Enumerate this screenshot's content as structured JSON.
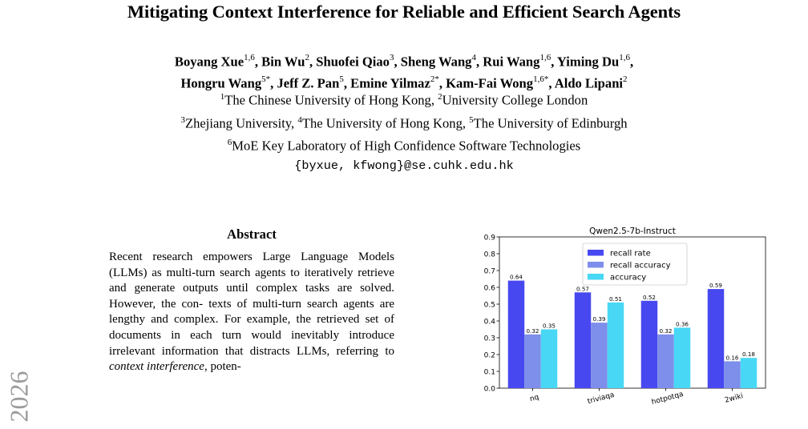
{
  "paper": {
    "title": "Mitigating Context Interference for Reliable and Efficient Search Agents",
    "authors_line1": [
      {
        "name": "Boyang Xue",
        "sup": "1,6"
      },
      {
        "name": "Bin Wu",
        "sup": "2"
      },
      {
        "name": "Shuofei Qiao",
        "sup": "3"
      },
      {
        "name": "Sheng Wang",
        "sup": "4"
      },
      {
        "name": "Rui Wang",
        "sup": "1,6"
      },
      {
        "name": "Yiming Du",
        "sup": "1,6"
      }
    ],
    "authors_line2": [
      {
        "name": "Hongru Wang",
        "sup": "5*"
      },
      {
        "name": "Jeff Z. Pan",
        "sup": "5"
      },
      {
        "name": "Emine Yilmaz",
        "sup": "2*"
      },
      {
        "name": "Kam-Fai Wong",
        "sup": "1,6*"
      },
      {
        "name": "Aldo Lipani",
        "sup": "2"
      }
    ],
    "affiliations": [
      [
        {
          "sup": "1",
          "text": "The Chinese University of Hong Kong, "
        },
        {
          "sup": "2",
          "text": "University College London"
        }
      ],
      [
        {
          "sup": "3",
          "text": "Zhejiang University, "
        },
        {
          "sup": "4",
          "text": "The University of Hong Kong, "
        },
        {
          "sup": "5",
          "text": "The University of Edinburgh"
        }
      ],
      [
        {
          "sup": "6",
          "text": "MoE Key Laboratory of High Confidence Software Technologies"
        }
      ]
    ],
    "email": "{byxue, kfwong}@se.cuhk.edu.hk",
    "watermark": "2026",
    "abstract_heading": "Abstract",
    "abstract_parts": {
      "p1": "Recent research empowers Large Language Models (LLMs) as multi-turn search agents to iteratively retrieve and generate outputs until complex tasks are solved. However, the con-",
      "p2": "texts of multi-turn search agents are lengthy and complex. For example, the retrieved set of documents in each turn would inevitably introduce irrelevant information that distracts LLMs, referring to ",
      "em": "context interference",
      "p3": ", poten-"
    }
  },
  "chart_data": {
    "type": "bar",
    "title": "Qwen2.5-7b-Instruct",
    "categories": [
      "nq",
      "triviaqa",
      "hotpotqa",
      "2wiki"
    ],
    "series": [
      {
        "name": "recall rate",
        "values": [
          0.64,
          0.57,
          0.52,
          0.59
        ],
        "color": "#4848f0"
      },
      {
        "name": "recall accuracy",
        "values": [
          0.32,
          0.39,
          0.32,
          0.16
        ],
        "color": "#7d8fea"
      },
      {
        "name": "accuracy",
        "values": [
          0.35,
          0.51,
          0.36,
          0.18
        ],
        "color": "#48d7f5"
      }
    ],
    "ylim": [
      0.0,
      0.9
    ],
    "yticks": [
      0.0,
      0.1,
      0.2,
      0.3,
      0.4,
      0.5,
      0.6,
      0.7,
      0.8,
      0.9
    ],
    "legend": "top-center",
    "grid": false
  }
}
